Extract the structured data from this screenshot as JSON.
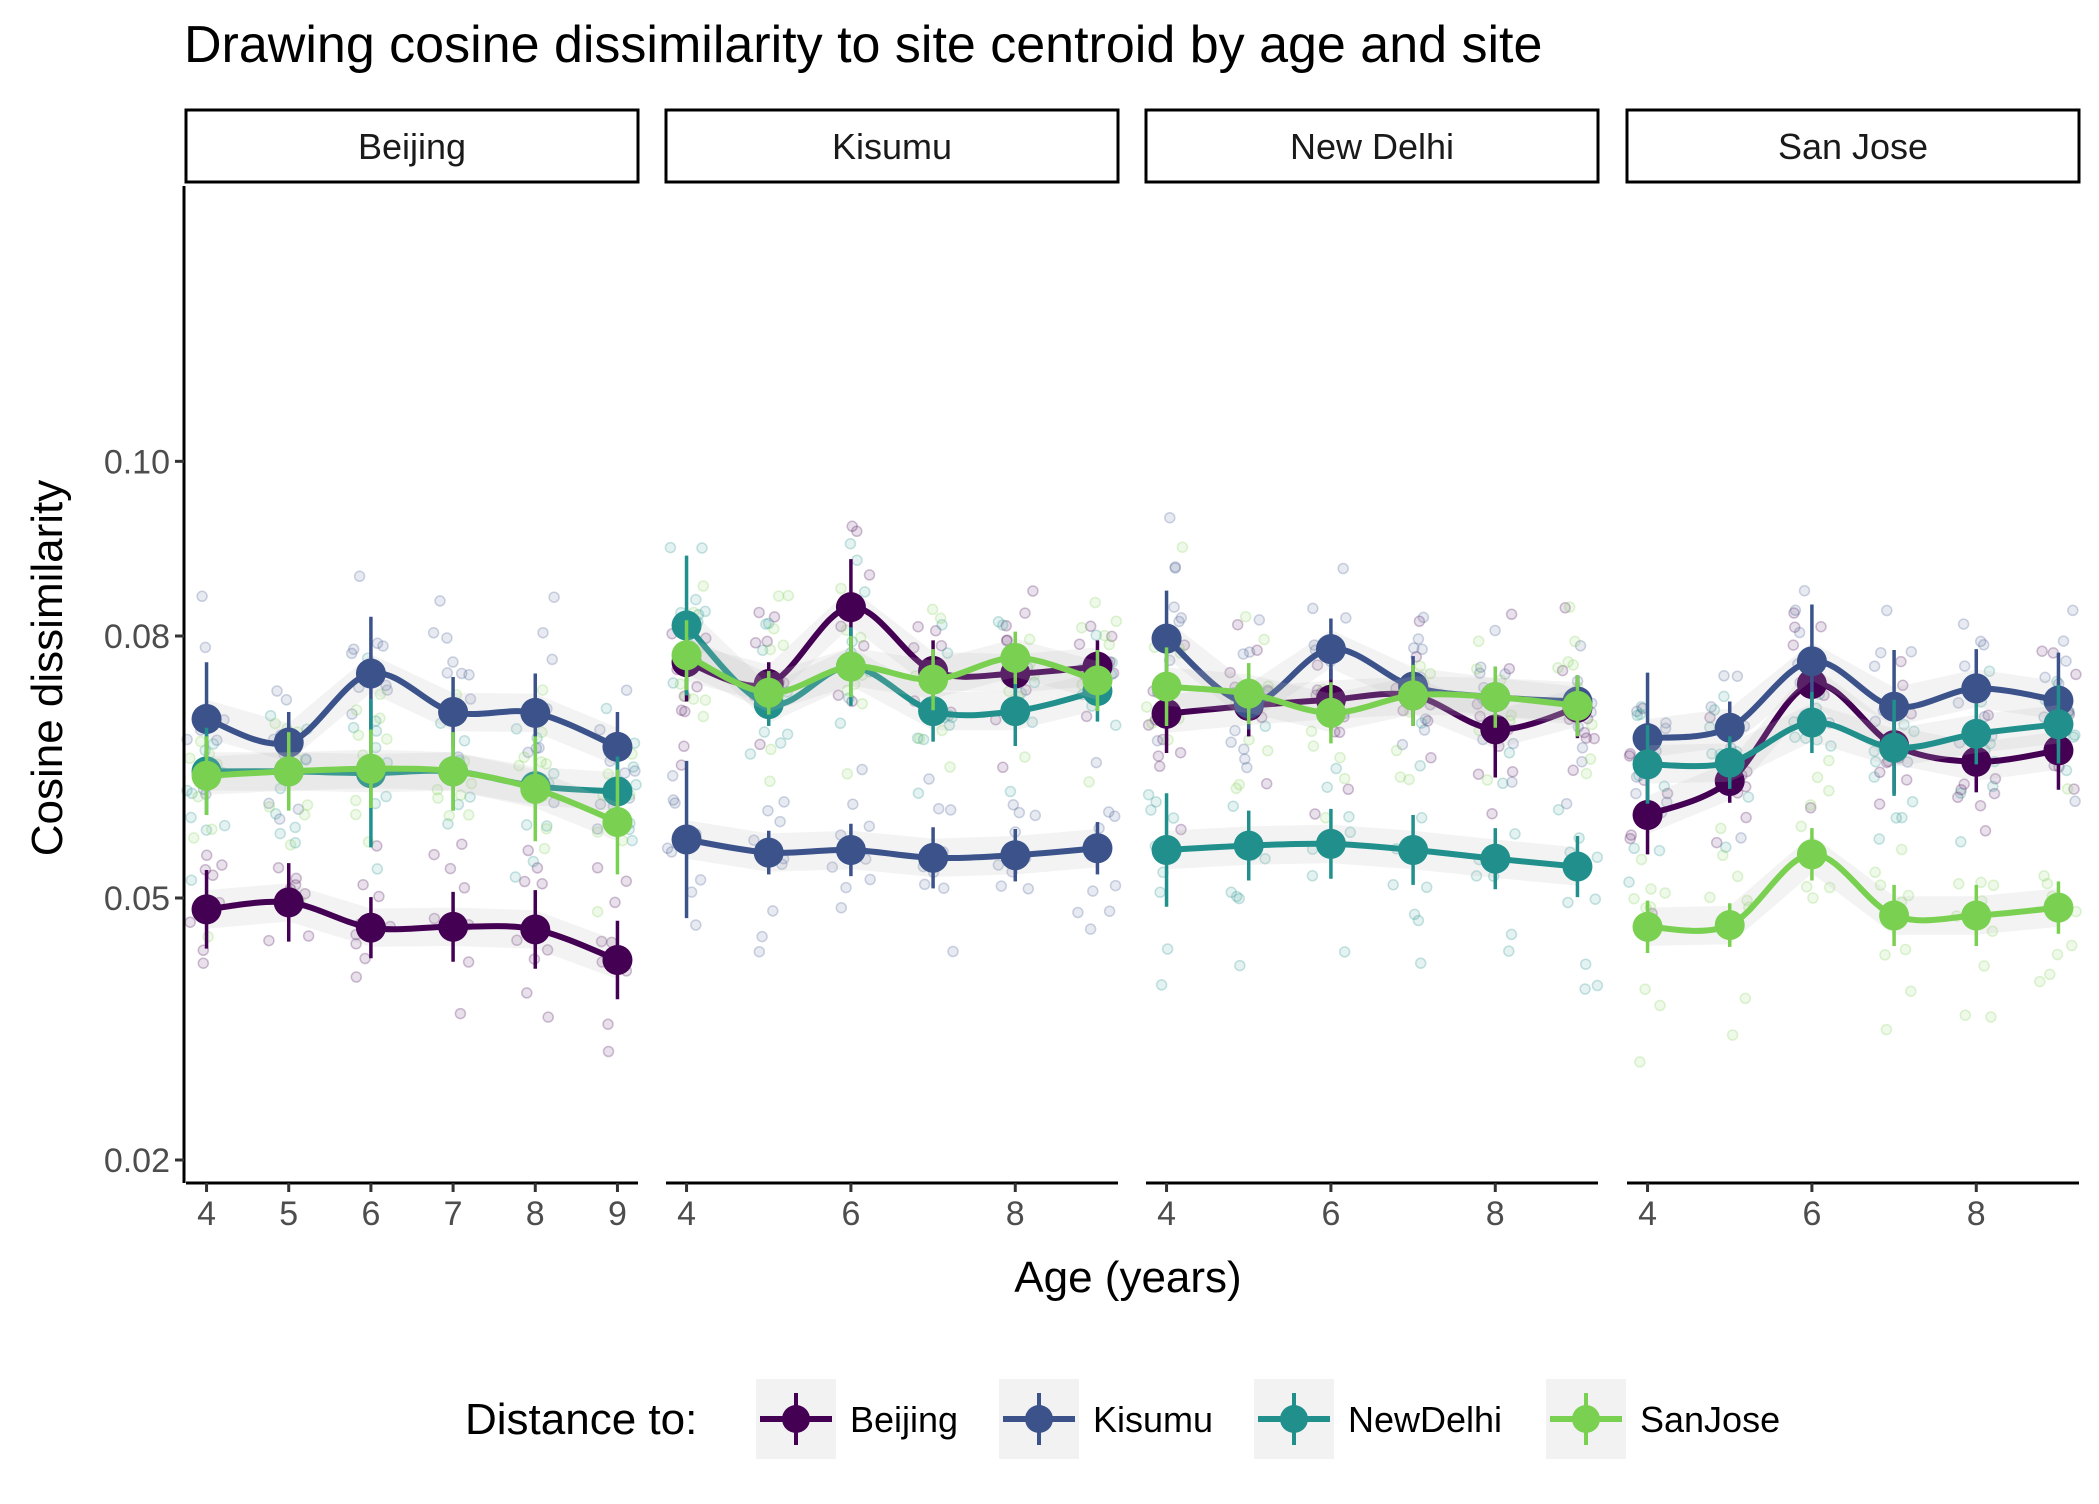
{
  "chart_data": {
    "type": "line",
    "title": "Drawing cosine dissimilarity to site centroid by age and site",
    "xlabel": "Age (years)",
    "ylabel": "Cosine dissimilarity",
    "ylim": [
      0.02,
      0.115
    ],
    "y_ticks": [
      "0.02",
      "0.05",
      "0.08",
      "0.10"
    ],
    "y_tick_values": [
      0.02,
      0.05,
      0.08,
      0.1
    ],
    "grid": false,
    "legend": {
      "title": "Distance to:",
      "position": "bottom",
      "entries": [
        "Beijing",
        "Kisumu",
        "NewDelhi",
        "SanJose"
      ]
    },
    "colors": {
      "Beijing": "#440154",
      "Kisumu": "#3B528B",
      "NewDelhi": "#21908C",
      "SanJose": "#7AD151"
    },
    "panels": [
      {
        "site": "Beijing",
        "x_ticks": [
          "4",
          "5",
          "6",
          "7",
          "8",
          "9"
        ],
        "x_tick_values": [
          4,
          5,
          6,
          7,
          8,
          9
        ],
        "xlim": [
          3.75,
          9.25
        ],
        "series": [
          {
            "name": "Beijing",
            "x": [
              4,
              5,
              6,
              7,
              8,
              9
            ],
            "values": [
              0.0487,
              0.0495,
              0.0466,
              0.0467,
              0.0464,
              0.0429
            ],
            "err": [
              0.0045,
              0.0045,
              0.0035,
              0.004,
              0.0045,
              0.0045
            ]
          },
          {
            "name": "Kisumu",
            "x": [
              4,
              5,
              6,
              7,
              8,
              9
            ],
            "values": [
              0.0705,
              0.0678,
              0.0757,
              0.0713,
              0.0712,
              0.0673
            ],
            "err": [
              0.0065,
              0.0035,
              0.0065,
              0.004,
              0.0045,
              0.004
            ]
          },
          {
            "name": "NewDelhi",
            "x": [
              4,
              5,
              6,
              7,
              8,
              9
            ],
            "values": [
              0.0645,
              0.0645,
              0.0643,
              0.0645,
              0.0628,
              0.0622
            ],
            "err": [
              0.005,
              0.004,
              0.0085,
              0.0045,
              0.0045,
              0.004
            ]
          },
          {
            "name": "SanJose",
            "x": [
              4,
              5,
              6,
              7,
              8,
              9
            ],
            "values": [
              0.064,
              0.0645,
              0.0648,
              0.0645,
              0.0625,
              0.0587
            ],
            "err": [
              0.0045,
              0.0045,
              0.0045,
              0.0045,
              0.006,
              0.006
            ]
          }
        ]
      },
      {
        "site": "Kisumu",
        "x_ticks": [
          "4",
          "6",
          "8"
        ],
        "x_tick_values": [
          4,
          6,
          8
        ],
        "xlim": [
          3.75,
          9.25
        ],
        "series": [
          {
            "name": "Beijing",
            "x": [
              4,
              5,
              6,
              7,
              8,
              9
            ],
            "values": [
              0.077,
              0.0745,
              0.0833,
              0.076,
              0.0757,
              0.0765
            ],
            "err": [
              0.0045,
              0.0025,
              0.0055,
              0.0035,
              0.0035,
              0.003
            ]
          },
          {
            "name": "Kisumu",
            "x": [
              4,
              5,
              6,
              7,
              8,
              9
            ],
            "values": [
              0.0567,
              0.0552,
              0.0555,
              0.0546,
              0.0549,
              0.0557
            ],
            "err": [
              0.009,
              0.0025,
              0.003,
              0.0035,
              0.003,
              0.003
            ]
          },
          {
            "name": "NewDelhi",
            "x": [
              4,
              5,
              6,
              7,
              8,
              9
            ],
            "values": [
              0.0812,
              0.0722,
              0.0765,
              0.0714,
              0.0714,
              0.0737
            ],
            "err": [
              0.008,
              0.0025,
              0.0045,
              0.0035,
              0.004,
              0.0035
            ]
          },
          {
            "name": "SanJose",
            "x": [
              4,
              5,
              6,
              7,
              8,
              9
            ],
            "values": [
              0.0778,
              0.0735,
              0.0765,
              0.075,
              0.0775,
              0.0749
            ],
            "err": [
              0.004,
              0.0025,
              0.0035,
              0.0035,
              0.003,
              0.0035
            ]
          }
        ]
      },
      {
        "site": "New Delhi",
        "x_ticks": [
          "4",
          "6",
          "8"
        ],
        "x_tick_values": [
          4,
          6,
          8
        ],
        "xlim": [
          3.75,
          9.25
        ],
        "series": [
          {
            "name": "Beijing",
            "x": [
              4,
              5,
              6,
              7,
              8,
              9
            ],
            "values": [
              0.0711,
              0.072,
              0.0727,
              0.0732,
              0.0693,
              0.0718
            ],
            "err": [
              0.0045,
              0.0035,
              0.0035,
              0.0035,
              0.0055,
              0.0035
            ]
          },
          {
            "name": "Kisumu",
            "x": [
              4,
              5,
              6,
              7,
              8,
              9
            ],
            "values": [
              0.0797,
              0.0723,
              0.0785,
              0.0742,
              0.073,
              0.0725
            ],
            "err": [
              0.0055,
              0.003,
              0.0035,
              0.0035,
              0.0035,
              0.003
            ]
          },
          {
            "name": "NewDelhi",
            "x": [
              4,
              5,
              6,
              7,
              8,
              9
            ],
            "values": [
              0.0555,
              0.056,
              0.0562,
              0.0555,
              0.0545,
              0.0536
            ],
            "err": [
              0.0065,
              0.004,
              0.004,
              0.004,
              0.0035,
              0.0035
            ]
          },
          {
            "name": "SanJose",
            "x": [
              4,
              5,
              6,
              7,
              8,
              9
            ],
            "values": [
              0.0742,
              0.0734,
              0.0712,
              0.0732,
              0.073,
              0.072
            ],
            "err": [
              0.0045,
              0.0035,
              0.0035,
              0.0035,
              0.0035,
              0.0035
            ]
          }
        ]
      },
      {
        "site": "San Jose",
        "x_ticks": [
          "4",
          "6",
          "8"
        ],
        "x_tick_values": [
          4,
          6,
          8
        ],
        "xlim": [
          3.75,
          9.25
        ],
        "series": [
          {
            "name": "Beijing",
            "x": [
              4,
              5,
              6,
              7,
              8,
              9
            ],
            "values": [
              0.0595,
              0.0634,
              0.0745,
              0.0675,
              0.0656,
              0.0669
            ],
            "err": [
              0.0045,
              0.0025,
              0.0035,
              0.0055,
              0.0035,
              0.0045
            ]
          },
          {
            "name": "Kisumu",
            "x": [
              4,
              5,
              6,
              7,
              8,
              9
            ],
            "values": [
              0.0683,
              0.0695,
              0.0771,
              0.0719,
              0.074,
              0.0726
            ],
            "err": [
              0.0075,
              0.003,
              0.0065,
              0.0065,
              0.0045,
              0.0055
            ]
          },
          {
            "name": "NewDelhi",
            "x": [
              4,
              5,
              6,
              7,
              8,
              9
            ],
            "values": [
              0.0653,
              0.0655,
              0.0701,
              0.0672,
              0.0688,
              0.0699
            ],
            "err": [
              0.0045,
              0.003,
              0.0035,
              0.0055,
              0.0035,
              0.0045
            ]
          },
          {
            "name": "SanJose",
            "x": [
              4,
              5,
              6,
              7,
              8,
              9
            ],
            "values": [
              0.0467,
              0.0469,
              0.055,
              0.048,
              0.048,
              0.0489
            ],
            "err": [
              0.003,
              0.0025,
              0.003,
              0.0035,
              0.0035,
              0.003
            ]
          }
        ]
      }
    ]
  }
}
